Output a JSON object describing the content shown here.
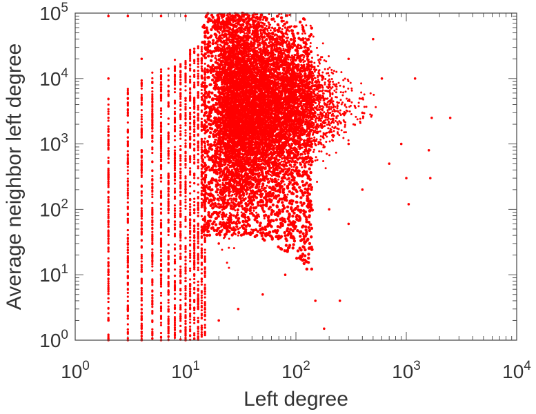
{
  "chart_data": {
    "type": "scatter",
    "title": "",
    "xlabel": "Left degree",
    "ylabel": "Average neighbor left degree",
    "xscale": "log",
    "yscale": "log",
    "xlim": [
      1,
      10000
    ],
    "ylim": [
      1,
      100000
    ],
    "grid": false,
    "legend": "none",
    "x_ticks": [
      {
        "value": 1,
        "base": "10",
        "exp": "0"
      },
      {
        "value": 10,
        "base": "10",
        "exp": "1"
      },
      {
        "value": 100,
        "base": "10",
        "exp": "2"
      },
      {
        "value": 1000,
        "base": "10",
        "exp": "3"
      },
      {
        "value": 10000,
        "base": "10",
        "exp": "4"
      }
    ],
    "y_ticks": [
      {
        "value": 1,
        "base": "10",
        "exp": "0"
      },
      {
        "value": 10,
        "base": "10",
        "exp": "1"
      },
      {
        "value": 100,
        "base": "10",
        "exp": "2"
      },
      {
        "value": 1000,
        "base": "10",
        "exp": "3"
      },
      {
        "value": 10000,
        "base": "10",
        "exp": "4"
      },
      {
        "value": 100000,
        "base": "10",
        "exp": "5"
      }
    ],
    "marker_color": "#ff0000",
    "series": [
      {
        "points": [
          [
            2,
            1
          ],
          [
            2,
            2
          ],
          [
            2,
            10
          ],
          [
            2,
            100
          ],
          [
            2,
            1000
          ],
          [
            2,
            10000
          ],
          [
            2,
            90000
          ],
          [
            3,
            1
          ],
          [
            3,
            3
          ],
          [
            3,
            30
          ],
          [
            3,
            500
          ],
          [
            3,
            5000
          ],
          [
            3,
            90000
          ],
          [
            4,
            1
          ],
          [
            4,
            5
          ],
          [
            4,
            50
          ],
          [
            4,
            800
          ],
          [
            4,
            20000
          ],
          [
            6,
            1
          ],
          [
            6,
            10
          ],
          [
            6,
            300
          ],
          [
            6,
            8000
          ],
          [
            6,
            90000
          ],
          [
            10,
            1
          ],
          [
            10,
            8
          ],
          [
            10,
            200
          ],
          [
            10,
            5000
          ],
          [
            10,
            90000
          ],
          [
            20,
            2
          ],
          [
            20,
            30
          ],
          [
            20,
            1000
          ],
          [
            20,
            40000
          ],
          [
            30,
            3
          ],
          [
            30,
            50
          ],
          [
            30,
            2000
          ],
          [
            30,
            90000
          ],
          [
            50,
            5
          ],
          [
            50,
            100
          ],
          [
            50,
            3000
          ],
          [
            50,
            70000
          ],
          [
            80,
            10
          ],
          [
            80,
            300
          ],
          [
            80,
            5000
          ],
          [
            80,
            60000
          ],
          [
            120,
            30
          ],
          [
            120,
            500
          ],
          [
            120,
            8000
          ],
          [
            120,
            80000
          ],
          [
            150,
            4
          ],
          [
            180,
            1.5
          ],
          [
            200,
            100
          ],
          [
            250,
            4
          ],
          [
            300,
            60
          ],
          [
            300,
            1000
          ],
          [
            300,
            20000
          ],
          [
            400,
            200
          ],
          [
            400,
            3000
          ],
          [
            500,
            40000
          ],
          [
            600,
            10000
          ],
          [
            700,
            500
          ],
          [
            900,
            1000
          ],
          [
            1000,
            300
          ],
          [
            1050,
            120
          ],
          [
            1200,
            10000
          ],
          [
            1600,
            800
          ],
          [
            1650,
            300
          ],
          [
            1700,
            2500
          ],
          [
            2500,
            2500
          ]
        ]
      }
    ]
  }
}
